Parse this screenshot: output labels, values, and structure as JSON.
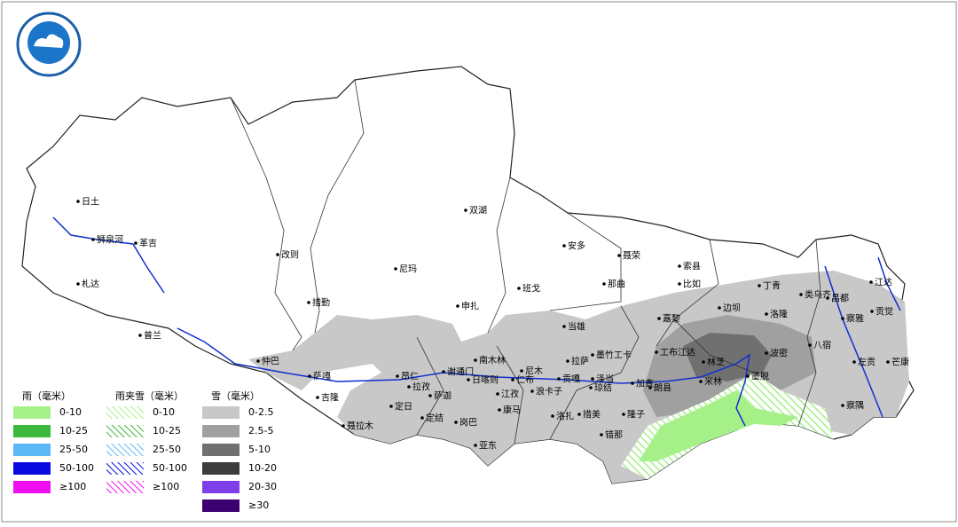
{
  "cities": [
    "日土",
    "狮泉河",
    "革吉",
    "札达",
    "改则",
    "双湖",
    "安多",
    "聂荣",
    "尼玛",
    "索县",
    "班戈",
    "那曲",
    "比如",
    "丁青",
    "江达",
    "类乌齐",
    "昌都",
    "措勤",
    "申扎",
    "边坝",
    "洛隆",
    "察雅",
    "贡觉",
    "嘉黎",
    "当雄",
    "普兰",
    "八宿",
    "工布江达",
    "波密",
    "墨竹工卡",
    "林芝",
    "左贡",
    "芒康",
    "仲巴",
    "南木林",
    "尼木",
    "拉萨",
    "萨嘎",
    "昂仁",
    "谢通门",
    "日喀则",
    "仁布",
    "贡嘎",
    "泽当",
    "米林",
    "墨脱",
    "加查",
    "朗县",
    "拉孜",
    "萨迦",
    "吉隆",
    "江孜",
    "浪卡子",
    "琼结",
    "定日",
    "定结",
    "岗巴",
    "康马",
    "洛扎",
    "措美",
    "隆子",
    "察隅",
    "聂拉木",
    "亚东",
    "错那"
  ],
  "legend": {
    "rain": {
      "title": "雨（毫米）",
      "items": [
        {
          "label": "0-10",
          "color": "#a6f08a"
        },
        {
          "label": "10-25",
          "color": "#3cb83c"
        },
        {
          "label": "25-50",
          "color": "#5cb8f5"
        },
        {
          "label": "50-100",
          "color": "#0a0ae0"
        },
        {
          "label": "≥100",
          "color": "#f00ff0"
        }
      ]
    },
    "sleet": {
      "title": "雨夹雪（毫米）",
      "items": [
        {
          "label": "0-10",
          "color": "#a6f08a"
        },
        {
          "label": "10-25",
          "color": "#3cb83c"
        },
        {
          "label": "25-50",
          "color": "#5cb8f5"
        },
        {
          "label": "50-100",
          "color": "#0a0ae0"
        },
        {
          "label": "≥100",
          "color": "#f00ff0"
        }
      ]
    },
    "snow": {
      "title": "雪（毫米）",
      "items": [
        {
          "label": "0-2.5",
          "color": "#c8c8c8"
        },
        {
          "label": "2.5-5",
          "color": "#a0a0a0"
        },
        {
          "label": "5-10",
          "color": "#707070"
        },
        {
          "label": "10-20",
          "color": "#3c3c3c"
        },
        {
          "label": "20-30",
          "color": "#7f3fe8"
        },
        {
          "label": "≥30",
          "color": "#3c0070"
        }
      ]
    }
  }
}
